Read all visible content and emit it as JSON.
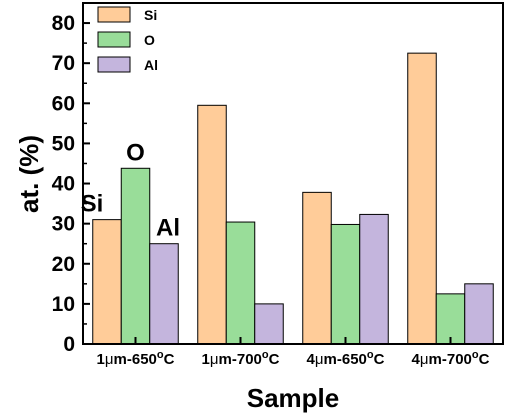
{
  "chart_data": {
    "type": "bar",
    "title": "",
    "xlabel": "Sample",
    "ylabel": "at. (%)",
    "ylim": [
      0,
      85
    ],
    "yticks": [
      0,
      10,
      20,
      30,
      40,
      50,
      60,
      70,
      80
    ],
    "categories": [
      {
        "prefix": "1",
        "mu": "μ",
        "mid": "m-650",
        "deg": "o",
        "suffix": "C"
      },
      {
        "prefix": "1",
        "mu": "μ",
        "mid": "m-700",
        "deg": "o",
        "suffix": "C"
      },
      {
        "prefix": "4",
        "mu": "μ",
        "mid": "m-650",
        "deg": "o",
        "suffix": "C"
      },
      {
        "prefix": "4",
        "mu": "μ",
        "mid": "m-700",
        "deg": "o",
        "suffix": "C"
      }
    ],
    "series": [
      {
        "name": "Si",
        "color": "#FFCC99",
        "values": [
          31.0,
          59.5,
          37.8,
          72.5
        ]
      },
      {
        "name": "O",
        "color": "#99DD99",
        "values": [
          43.8,
          30.4,
          29.8,
          12.5
        ]
      },
      {
        "name": "Al",
        "color": "#C4B5DD",
        "values": [
          25.0,
          10.0,
          32.3,
          15.0
        ]
      }
    ],
    "legend_position": "top-left",
    "grid": false,
    "annotations": [
      {
        "text": "Si",
        "category_index": 0,
        "series_index": 0
      },
      {
        "text": "O",
        "category_index": 0,
        "series_index": 1
      },
      {
        "text": "Al",
        "category_index": 0,
        "series_index": 2
      }
    ]
  }
}
